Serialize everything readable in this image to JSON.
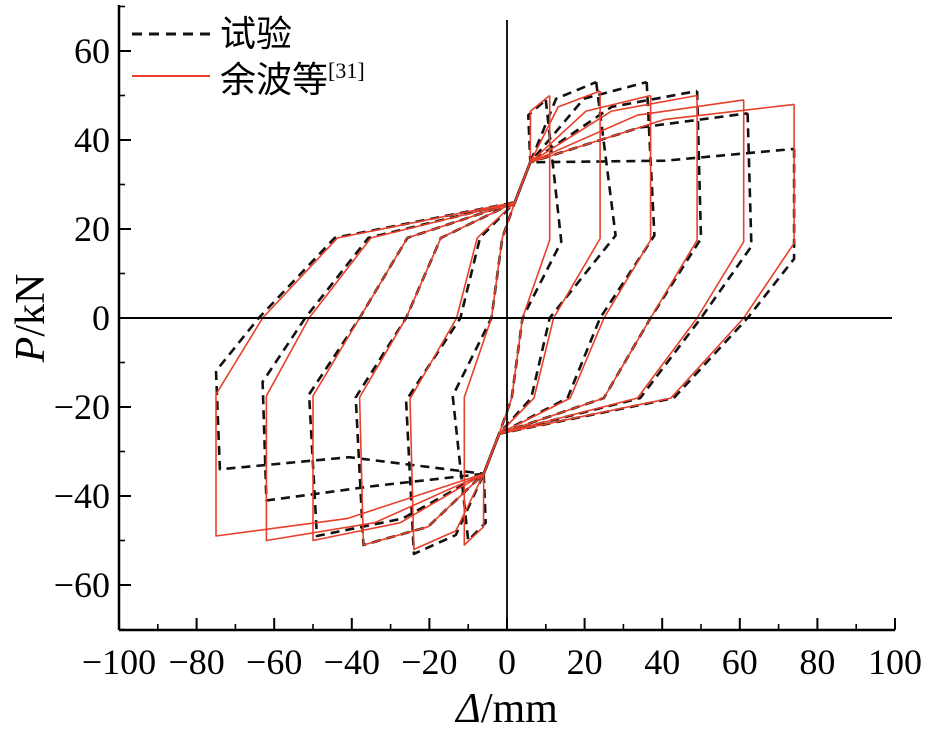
{
  "chart_data": {
    "type": "line",
    "xlabel_symbol": "Δ",
    "xlabel_unit": "/mm",
    "ylabel_symbol": "P",
    "ylabel_unit": "/kN",
    "xlim": [
      -100,
      100
    ],
    "ylim": [
      -70,
      70
    ],
    "xticks": [
      -100,
      -80,
      -60,
      -40,
      -20,
      0,
      20,
      40,
      60,
      80,
      100
    ],
    "yticks": [
      -60,
      -40,
      -20,
      0,
      20,
      40,
      60
    ],
    "xtick_labels": [
      "−100",
      "−80",
      "−60",
      "−40",
      "−20",
      "0",
      "20",
      "40",
      "60",
      "80",
      "100"
    ],
    "ytick_labels": [
      "−60",
      "−40",
      "−20",
      "0",
      "20",
      "40",
      "60"
    ],
    "legend": [
      {
        "label": "试验",
        "ref": "",
        "style": "dashed",
        "color": "#111111"
      },
      {
        "label": "余波等",
        "ref": "[31]",
        "style": "solid",
        "color": "#e8402a"
      }
    ],
    "series": [
      {
        "name": "试验",
        "color": "#111111",
        "style": "dashed",
        "cycles": [
          {
            "pos_peak": [
              10,
              49
            ],
            "neg_peak": [
              -10,
              -50
            ],
            "pos_zero": 4,
            "neg_zero": -4,
            "pos_unload": 14,
            "neg_unload": -14
          },
          {
            "pos_peak": [
              23,
              53
            ],
            "neg_peak": [
              -24,
              -53
            ],
            "pos_zero": 11,
            "neg_zero": -12,
            "pos_unload": 28,
            "neg_unload": -26
          },
          {
            "pos_peak": [
              36,
              53
            ],
            "neg_peak": [
              -37,
              -51
            ],
            "pos_zero": 24,
            "neg_zero": -26,
            "pos_unload": 38,
            "neg_unload": -39
          },
          {
            "pos_peak": [
              49,
              51
            ],
            "neg_peak": [
              -49,
              -49
            ],
            "pos_zero": 37,
            "neg_zero": -38,
            "pos_unload": 50,
            "neg_unload": -51
          },
          {
            "pos_peak": [
              62,
              46
            ],
            "neg_peak": [
              -62,
              -41
            ],
            "pos_zero": 50,
            "neg_zero": -52,
            "pos_unload": 63,
            "neg_unload": -63
          },
          {
            "pos_peak": [
              74,
              38
            ],
            "neg_peak": [
              -74,
              -34
            ],
            "pos_zero": 62,
            "neg_zero": -64,
            "pos_unload": 74,
            "neg_unload": -75
          }
        ]
      },
      {
        "name": "余波等[31]",
        "color": "#e8402a",
        "style": "solid",
        "cycles": [
          {
            "pos_peak": [
              11,
              50
            ],
            "neg_peak": [
              -11,
              -51
            ],
            "pos_zero": 4,
            "neg_zero": -4,
            "pos_unload": 11,
            "neg_unload": -11
          },
          {
            "pos_peak": [
              24,
              51
            ],
            "neg_peak": [
              -24,
              -52
            ],
            "pos_zero": 12,
            "neg_zero": -13,
            "pos_unload": 24,
            "neg_unload": -25
          },
          {
            "pos_peak": [
              37,
              50
            ],
            "neg_peak": [
              -37,
              -51
            ],
            "pos_zero": 25,
            "neg_zero": -26,
            "pos_unload": 37,
            "neg_unload": -38
          },
          {
            "pos_peak": [
              49,
              50
            ],
            "neg_peak": [
              -50,
              -50
            ],
            "pos_zero": 37,
            "neg_zero": -38,
            "pos_unload": 49,
            "neg_unload": -50
          },
          {
            "pos_peak": [
              61,
              49
            ],
            "neg_peak": [
              -62,
              -50
            ],
            "pos_zero": 49,
            "neg_zero": -51,
            "pos_unload": 61,
            "neg_unload": -62
          },
          {
            "pos_peak": [
              74,
              48
            ],
            "neg_peak": [
              -75,
              -49
            ],
            "pos_zero": 61,
            "neg_zero": -63,
            "pos_unload": 74,
            "neg_unload": -75
          }
        ]
      }
    ],
    "grid": false,
    "legend_position": "top-left"
  }
}
